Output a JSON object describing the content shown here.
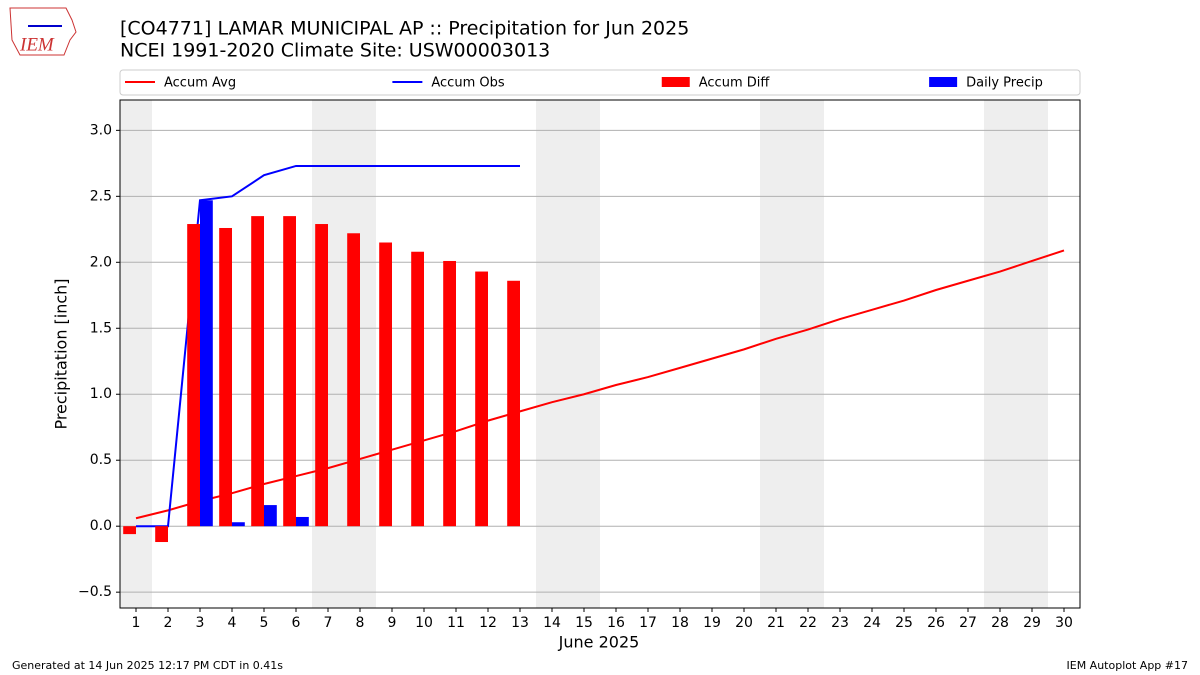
{
  "logo": "IEM",
  "footer": {
    "left": "Generated at 14 Jun 2025 12:17 PM CDT in 0.41s",
    "right": "IEM Autoplot App #17"
  },
  "chart_data": {
    "type": "combo",
    "title": "[CO4771] LAMAR MUNICIPAL AP :: Precipitation for Jun 2025",
    "subtitle": "NCEI 1991-2020 Climate Site: USW00003013",
    "xlabel": "June 2025",
    "ylabel": "Precipitation [inch]",
    "x": [
      1,
      2,
      3,
      4,
      5,
      6,
      7,
      8,
      9,
      10,
      11,
      12,
      13,
      14,
      15,
      16,
      17,
      18,
      19,
      20,
      21,
      22,
      23,
      24,
      25,
      26,
      27,
      28,
      29,
      30
    ],
    "xlim": [
      0.5,
      30.5
    ],
    "xticks": [
      1,
      2,
      3,
      4,
      5,
      6,
      7,
      8,
      9,
      10,
      11,
      12,
      13,
      14,
      15,
      16,
      17,
      18,
      19,
      20,
      21,
      22,
      23,
      24,
      25,
      26,
      27,
      28,
      29,
      30
    ],
    "ylim": [
      -0.62,
      3.23
    ],
    "yticks": [
      {
        "value": -0.5,
        "label": "−0.5"
      },
      {
        "value": 0,
        "label": "0.0"
      },
      0.5,
      {
        "value": 1,
        "label": "1.0"
      },
      1.5,
      {
        "value": 2,
        "label": "2.0"
      },
      2.5,
      {
        "value": 3,
        "label": "3.0"
      }
    ],
    "grid": true,
    "legend": "top",
    "series": [
      {
        "name": "Accum Avg",
        "type": "line",
        "color": "#ff0000",
        "values": [
          0.06,
          0.12,
          0.19,
          0.25,
          0.32,
          0.38,
          0.44,
          0.51,
          0.58,
          0.65,
          0.72,
          0.8,
          0.87,
          0.94,
          1.0,
          1.07,
          1.13,
          1.2,
          1.27,
          1.34,
          1.42,
          1.49,
          1.57,
          1.64,
          1.71,
          1.79,
          1.86,
          1.93,
          2.01,
          2.09
        ]
      },
      {
        "name": "Accum Obs",
        "type": "line",
        "color": "#0000ff",
        "values": [
          0,
          0,
          2.47,
          2.5,
          2.66,
          2.73,
          2.73,
          2.73,
          2.73,
          2.73,
          2.73,
          2.73,
          2.73,
          null,
          null,
          null,
          null,
          null,
          null,
          null,
          null,
          null,
          null,
          null,
          null,
          null,
          null,
          null,
          null,
          null
        ]
      },
      {
        "name": "Accum Diff",
        "type": "bar",
        "color": "#ff0000",
        "values": [
          -0.06,
          -0.12,
          2.29,
          2.26,
          2.35,
          2.35,
          2.29,
          2.22,
          2.15,
          2.08,
          2.01,
          1.93,
          1.86,
          null,
          null,
          null,
          null,
          null,
          null,
          null,
          null,
          null,
          null,
          null,
          null,
          null,
          null,
          null,
          null,
          null
        ]
      },
      {
        "name": "Daily Precip",
        "type": "bar",
        "color": "#0000ff",
        "values": [
          0,
          0,
          2.47,
          0.03,
          0.16,
          0.07,
          0,
          0,
          0,
          0,
          0,
          0,
          0,
          null,
          null,
          null,
          null,
          null,
          null,
          null,
          null,
          null,
          null,
          null,
          null,
          null,
          null,
          null,
          null,
          null
        ]
      }
    ]
  }
}
